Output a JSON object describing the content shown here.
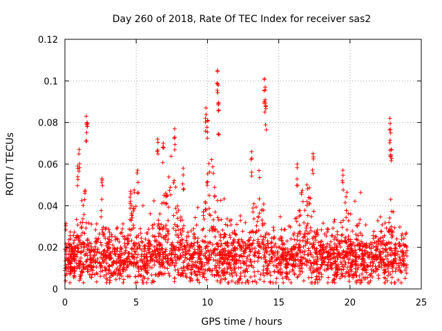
{
  "chart_data": {
    "type": "scatter",
    "title": "Day 260 of 2018, Rate Of TEC Index for receiver sas2",
    "xlabel": "GPS time / hours",
    "ylabel": "ROTI / TECUs",
    "xlim": [
      0,
      25
    ],
    "ylim": [
      0,
      0.12
    ],
    "xticks": [
      0,
      5,
      10,
      15,
      20,
      25
    ],
    "xtick_labels": [
      "0",
      "5",
      "10",
      "15",
      "20",
      "25"
    ],
    "yticks": [
      0,
      0.02,
      0.04,
      0.06,
      0.08,
      0.1,
      0.12
    ],
    "ytick_labels": [
      "0",
      "0.02",
      "0.04",
      "0.06",
      "0.08",
      "0.1",
      "0.12"
    ],
    "grid": true,
    "marker": "+",
    "color": "#ff0000",
    "series": [
      {
        "name": "ROTI",
        "x_range": [
          0,
          24
        ],
        "baseline_approx": 0.015,
        "typical_range": [
          0.005,
          0.04
        ],
        "notable_peaks": [
          {
            "x": 0.9,
            "y": 0.059
          },
          {
            "x": 1.0,
            "y": 0.067
          },
          {
            "x": 1.5,
            "y": 0.083
          },
          {
            "x": 1.55,
            "y": 0.08
          },
          {
            "x": 2.6,
            "y": 0.053
          },
          {
            "x": 4.6,
            "y": 0.047
          },
          {
            "x": 5.1,
            "y": 0.057
          },
          {
            "x": 6.5,
            "y": 0.072
          },
          {
            "x": 6.9,
            "y": 0.07
          },
          {
            "x": 7.7,
            "y": 0.077
          },
          {
            "x": 8.3,
            "y": 0.058
          },
          {
            "x": 9.9,
            "y": 0.087
          },
          {
            "x": 10.0,
            "y": 0.081
          },
          {
            "x": 10.7,
            "y": 0.105
          },
          {
            "x": 10.75,
            "y": 0.098
          },
          {
            "x": 10.8,
            "y": 0.086
          },
          {
            "x": 13.1,
            "y": 0.066
          },
          {
            "x": 14.0,
            "y": 0.101
          },
          {
            "x": 14.05,
            "y": 0.097
          },
          {
            "x": 14.1,
            "y": 0.088
          },
          {
            "x": 16.3,
            "y": 0.06
          },
          {
            "x": 17.4,
            "y": 0.065
          },
          {
            "x": 19.5,
            "y": 0.057
          },
          {
            "x": 22.8,
            "y": 0.082
          },
          {
            "x": 22.85,
            "y": 0.075
          },
          {
            "x": 22.9,
            "y": 0.067
          }
        ],
        "activity_windows": [
          {
            "x": [
              0.8,
              1.8
            ],
            "upper": 0.055
          },
          {
            "x": [
              2.3,
              2.8
            ],
            "upper": 0.05
          },
          {
            "x": [
              4.3,
              5.4
            ],
            "upper": 0.05
          },
          {
            "x": [
              6.4,
              8.5
            ],
            "upper": 0.065
          },
          {
            "x": [
              9.6,
              10.9
            ],
            "upper": 0.07
          },
          {
            "x": [
              13.0,
              14.2
            ],
            "upper": 0.065
          },
          {
            "x": [
              16.0,
              17.8
            ],
            "upper": 0.058
          },
          {
            "x": [
              19.3,
              20.3
            ],
            "upper": 0.05
          },
          {
            "x": [
              22.6,
              23.1
            ],
            "upper": 0.045
          }
        ]
      }
    ]
  }
}
